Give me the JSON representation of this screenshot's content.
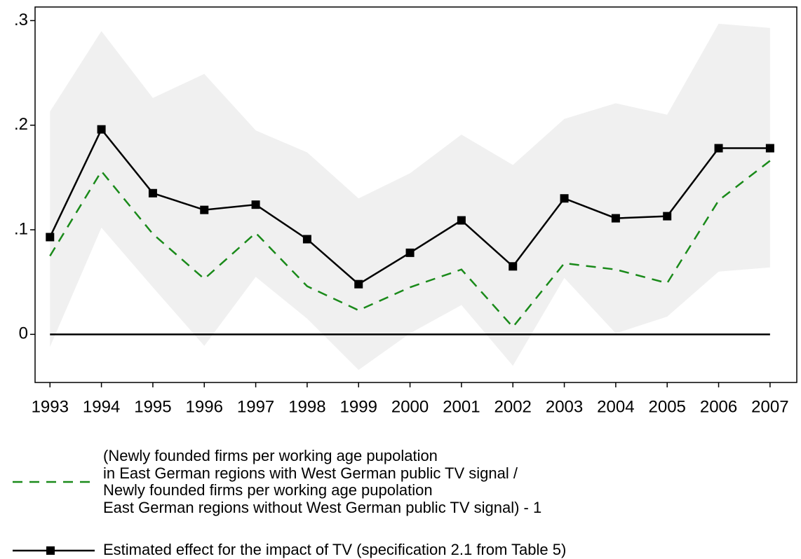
{
  "chart_data": {
    "type": "line",
    "x": [
      1993,
      1994,
      1995,
      1996,
      1997,
      1998,
      1999,
      2000,
      2001,
      2002,
      2003,
      2004,
      2005,
      2006,
      2007
    ],
    "xlim": [
      1992.71,
      2007.52
    ],
    "xticks": [
      1993,
      1994,
      1995,
      1996,
      1997,
      1998,
      1999,
      2000,
      2001,
      2002,
      2003,
      2004,
      2005,
      2006,
      2007
    ],
    "ylim": [
      -0.046,
      0.313
    ],
    "yticks": [
      0,
      {
        "value": 0.1,
        "label": ".1"
      },
      {
        "value": 0.2,
        "label": ".2"
      },
      {
        "value": 0.3,
        "label": ".3"
      }
    ],
    "reference_line": 0,
    "band": {
      "color": "#f0f0f0",
      "upper": [
        0.213,
        0.29,
        0.226,
        0.249,
        0.195,
        0.174,
        0.13,
        0.154,
        0.191,
        0.162,
        0.206,
        0.221,
        0.21,
        0.297,
        0.293
      ],
      "lower": [
        -0.012,
        0.102,
        0.045,
        -0.011,
        0.055,
        0.015,
        -0.034,
        0.001,
        0.028,
        -0.03,
        0.054,
        0.001,
        0.017,
        0.06,
        0.064
      ]
    },
    "series": [
      {
        "name": "(Newly founded firms per working age pupolation\nin East German regions with West German public TV signal /\nNewly founded firms per working age pupolation\nEast German regions without West German public TV signal) - 1",
        "color": "#1a8a1a",
        "dashed": true,
        "values": [
          0.075,
          0.156,
          0.096,
          0.053,
          0.097,
          0.046,
          0.023,
          0.045,
          0.062,
          0.007,
          0.068,
          0.062,
          0.049,
          0.128,
          0.166
        ]
      },
      {
        "name": "Estimated effect for the impact of TV (specification 2.1 from Table 5)",
        "color": "#000000",
        "markers": true,
        "values": [
          0.093,
          0.196,
          0.135,
          0.119,
          0.124,
          0.091,
          0.048,
          0.078,
          0.109,
          0.065,
          0.13,
          0.111,
          0.113,
          0.178,
          0.178
        ]
      }
    ]
  }
}
